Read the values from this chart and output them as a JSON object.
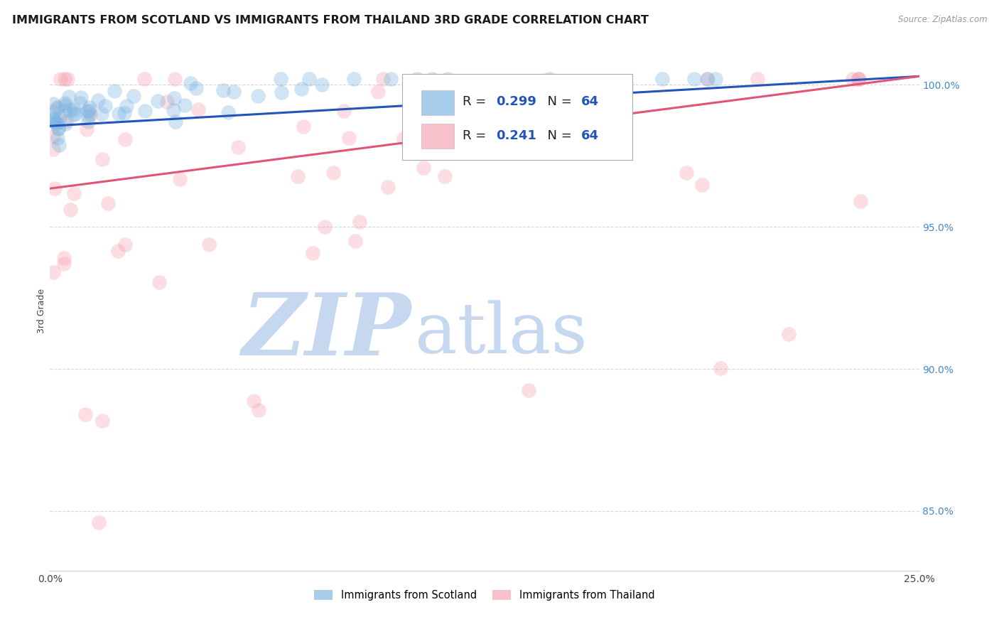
{
  "title": "IMMIGRANTS FROM SCOTLAND VS IMMIGRANTS FROM THAILAND 3RD GRADE CORRELATION CHART",
  "source_text": "Source: ZipAtlas.com",
  "ylabel": "3rd Grade",
  "ytick_values": [
    0.85,
    0.9,
    0.95,
    1.0
  ],
  "xlim": [
    0.0,
    0.25
  ],
  "ylim": [
    0.829,
    1.012
  ],
  "scotland_color": "#7ab3e0",
  "thailand_color": "#f4a0b0",
  "trendline_scotland_color": "#2255bb",
  "trendline_thailand_color": "#e05575",
  "background_color": "#ffffff",
  "grid_color": "#cccccc",
  "legend_label_scotland": "Immigrants from Scotland",
  "legend_label_thailand": "Immigrants from Thailand",
  "trendline_scotland_y0": 0.9855,
  "trendline_scotland_y1": 1.003,
  "trendline_thailand_y0": 0.9635,
  "trendline_thailand_y1": 1.003,
  "watermark_zip": "ZIP",
  "watermark_atlas": "atlas",
  "watermark_color_zip": "#c5d8f0",
  "watermark_color_atlas": "#c5d8f0",
  "marker_size": 220,
  "marker_alpha": 0.35,
  "title_fontsize": 11.5,
  "axis_label_fontsize": 9,
  "tick_fontsize": 10,
  "tick_color": "#4488cc"
}
